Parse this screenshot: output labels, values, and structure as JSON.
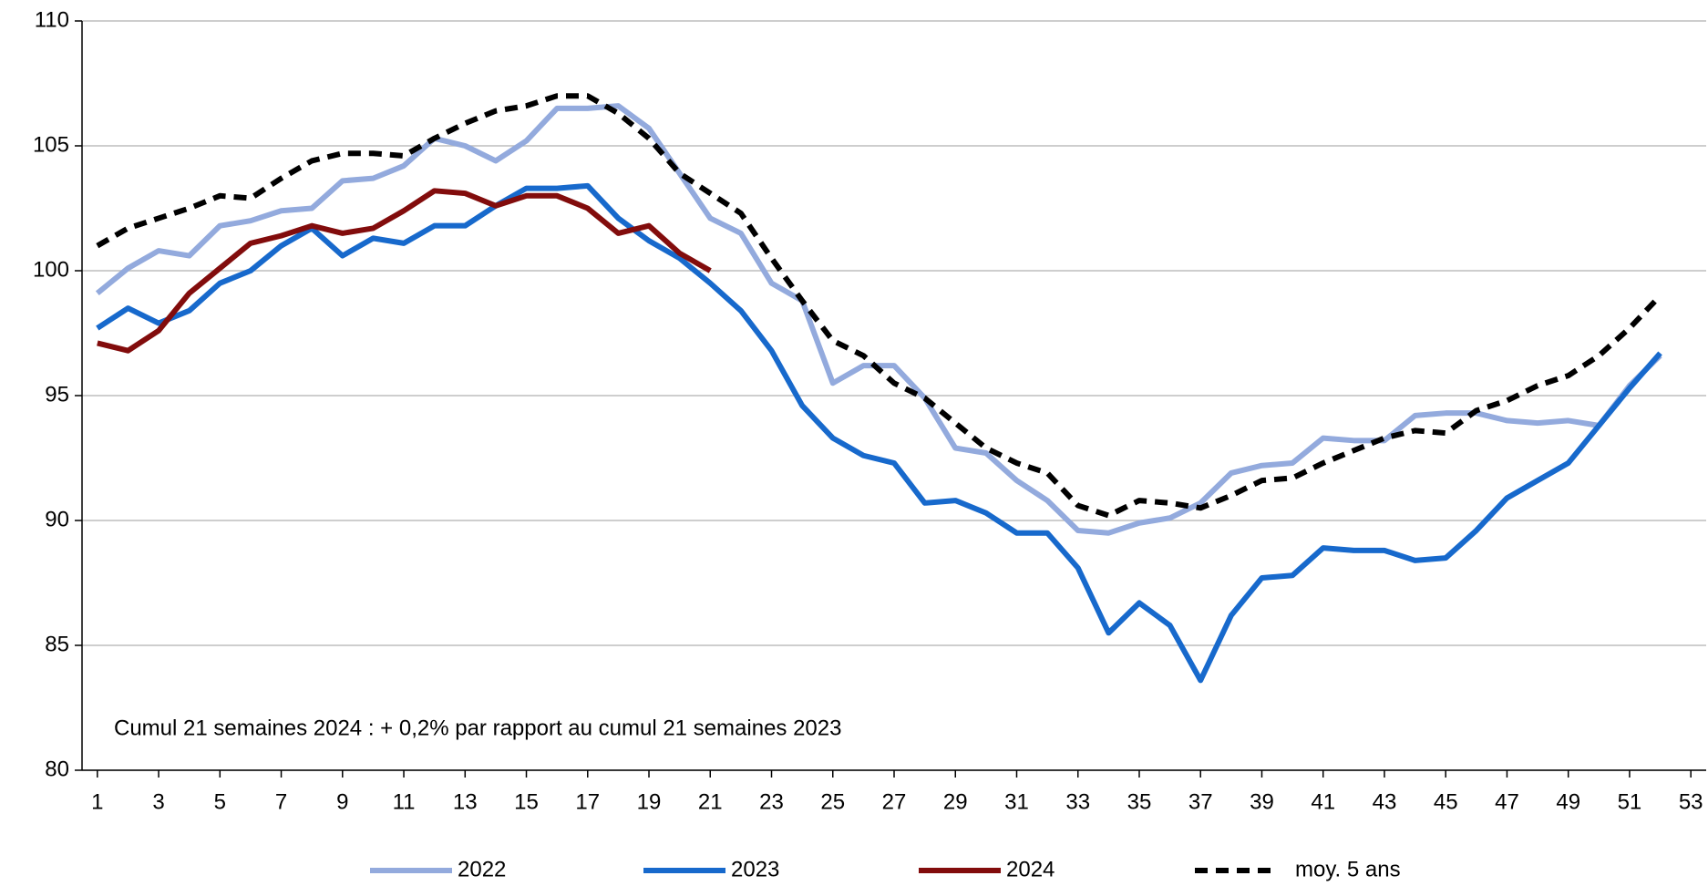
{
  "chart_data": {
    "type": "line",
    "annotation": "Cumul 21 semaines 2024 : + 0,2%  par rapport au cumul 21 semaines 2023",
    "x": [
      1,
      2,
      3,
      4,
      5,
      6,
      7,
      8,
      9,
      10,
      11,
      12,
      13,
      14,
      15,
      16,
      17,
      18,
      19,
      20,
      21,
      22,
      23,
      24,
      25,
      26,
      27,
      28,
      29,
      30,
      31,
      32,
      33,
      34,
      35,
      36,
      37,
      38,
      39,
      40,
      41,
      42,
      43,
      44,
      45,
      46,
      47,
      48,
      49,
      50,
      51,
      52
    ],
    "series": [
      {
        "name": "2022",
        "color": "#93aadd",
        "dash": false,
        "values": [
          99.1,
          100.1,
          100.8,
          100.6,
          101.8,
          102.0,
          102.4,
          102.5,
          103.6,
          103.7,
          104.2,
          105.3,
          105.0,
          104.4,
          105.2,
          106.5,
          106.5,
          106.6,
          105.7,
          103.9,
          102.1,
          101.5,
          99.5,
          98.8,
          95.5,
          96.2,
          96.2,
          94.9,
          92.9,
          92.7,
          91.6,
          90.8,
          89.6,
          89.5,
          89.9,
          90.1,
          90.7,
          91.9,
          92.2,
          92.3,
          93.3,
          93.2,
          93.2,
          94.2,
          94.3,
          94.3,
          94.0,
          93.9,
          94.0,
          93.8,
          95.4,
          96.6
        ]
      },
      {
        "name": "2023",
        "color": "#1769cc",
        "dash": false,
        "values": [
          97.7,
          98.5,
          97.9,
          98.4,
          99.5,
          100.0,
          101.0,
          101.7,
          100.6,
          101.3,
          101.1,
          101.8,
          101.8,
          102.6,
          103.3,
          103.3,
          103.4,
          102.1,
          101.2,
          100.5,
          99.5,
          98.4,
          96.8,
          94.6,
          93.3,
          92.6,
          92.3,
          90.7,
          90.8,
          90.3,
          89.5,
          89.5,
          88.1,
          85.5,
          86.7,
          85.8,
          83.6,
          86.2,
          87.7,
          87.8,
          88.9,
          88.8,
          88.8,
          88.4,
          88.5,
          89.6,
          90.9,
          91.6,
          92.3,
          93.8,
          95.3,
          96.7
        ]
      },
      {
        "name": "2024",
        "color": "#820c0c",
        "dash": false,
        "values": [
          97.1,
          96.8,
          97.6,
          99.1,
          100.1,
          101.1,
          101.4,
          101.8,
          101.5,
          101.7,
          102.4,
          103.2,
          103.1,
          102.6,
          103.0,
          103.0,
          102.5,
          101.5,
          101.8,
          100.7,
          100.0,
          null,
          null,
          null,
          null,
          null,
          null,
          null,
          null,
          null,
          null,
          null,
          null,
          null,
          null,
          null,
          null,
          null,
          null,
          null,
          null,
          null,
          null,
          null,
          null,
          null,
          null,
          null,
          null,
          null,
          null,
          null
        ]
      },
      {
        "name": "moy. 5 ans",
        "color": "#000000",
        "dash": true,
        "values": [
          101.0,
          101.7,
          102.1,
          102.5,
          103.0,
          102.9,
          103.7,
          104.4,
          104.7,
          104.7,
          104.6,
          105.3,
          105.9,
          106.4,
          106.6,
          107.0,
          107.0,
          106.3,
          105.3,
          103.9,
          103.1,
          102.3,
          100.5,
          98.8,
          97.2,
          96.6,
          95.5,
          94.9,
          93.9,
          92.9,
          92.3,
          91.9,
          90.6,
          90.2,
          90.8,
          90.7,
          90.5,
          91.0,
          91.6,
          91.7,
          92.3,
          92.8,
          93.3,
          93.6,
          93.5,
          94.4,
          94.8,
          95.4,
          95.8,
          96.6,
          97.7,
          99.0
        ]
      }
    ],
    "xlim": [
      0.5,
      53.5
    ],
    "xticks": [
      1,
      3,
      5,
      7,
      9,
      11,
      13,
      15,
      17,
      19,
      21,
      23,
      25,
      27,
      29,
      31,
      33,
      35,
      37,
      39,
      41,
      43,
      45,
      47,
      49,
      51,
      53
    ],
    "ylim": [
      80,
      110
    ],
    "yticks": [
      80,
      85,
      90,
      95,
      100,
      105,
      110
    ],
    "grid": true
  }
}
